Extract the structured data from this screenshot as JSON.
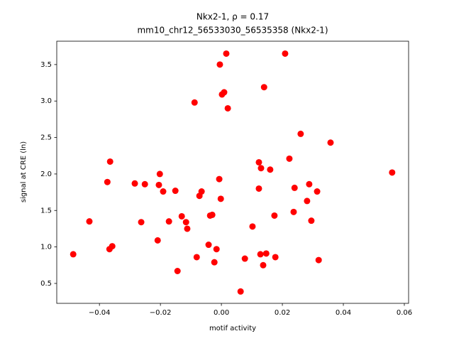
{
  "chart_data": {
    "type": "scatter",
    "title": "Nkx2-1, ρ = 0.17",
    "subtitle": "mm10_chr12_56533030_56535358 (Nkx2-1)",
    "x_label": "motif activity",
    "y_label": "signal at CRE (ln)",
    "color": "#ff0000",
    "x": [
      -0.0486,
      -0.0433,
      -0.0374,
      -0.0365,
      -0.0367,
      -0.0358,
      -0.0284,
      -0.0263,
      -0.0251,
      -0.0209,
      -0.0202,
      -0.0205,
      -0.0191,
      -0.0172,
      -0.0151,
      -0.0144,
      -0.013,
      -0.0116,
      -0.0112,
      -0.0088,
      -0.0081,
      -0.0072,
      -0.0065,
      -0.0042,
      -0.0037,
      -0.003,
      -0.0023,
      -0.0016,
      -0.0007,
      -0.0005,
      -0.0002,
      0.0002,
      0.0009,
      0.0016,
      0.0021,
      0.0063,
      0.0077,
      0.0102,
      0.0123,
      0.0123,
      0.013,
      0.0128,
      0.0137,
      0.014,
      0.0147,
      0.016,
      0.0174,
      0.0177,
      0.0209,
      0.0223,
      0.024,
      0.0237,
      0.026,
      0.0281,
      0.0288,
      0.0295,
      0.0314,
      0.0319,
      0.0358,
      0.056
    ],
    "values": [
      0.9,
      1.35,
      1.89,
      2.17,
      0.97,
      1.01,
      1.87,
      1.34,
      1.86,
      1.09,
      2.0,
      1.85,
      1.76,
      1.35,
      1.77,
      0.67,
      1.42,
      1.34,
      1.25,
      2.98,
      0.86,
      1.7,
      1.76,
      1.03,
      1.43,
      1.44,
      0.79,
      0.97,
      1.93,
      3.5,
      1.66,
      3.09,
      3.12,
      3.65,
      2.9,
      0.39,
      0.84,
      1.28,
      2.16,
      1.8,
      2.08,
      0.9,
      0.75,
      3.19,
      0.91,
      2.06,
      1.43,
      0.86,
      3.65,
      2.21,
      1.81,
      1.48,
      2.55,
      1.63,
      1.86,
      1.36,
      1.76,
      0.82,
      2.43,
      2.02
    ],
    "xlim": [
      -0.054,
      0.0614
    ],
    "ylim": [
      0.227,
      3.82
    ],
    "xticks": [
      {
        "value": -0.04,
        "label": "−0.04"
      },
      {
        "value": -0.02,
        "label": "−0.02"
      },
      {
        "value": 0,
        "label": "0.00"
      },
      0.02,
      0.04,
      0.06
    ],
    "yticks": [
      0.5,
      {
        "value": 1,
        "label": "1.0"
      },
      1.5,
      {
        "value": 2,
        "label": "2.0"
      },
      2.5,
      {
        "value": 3,
        "label": "3.0"
      },
      3.5
    ]
  }
}
